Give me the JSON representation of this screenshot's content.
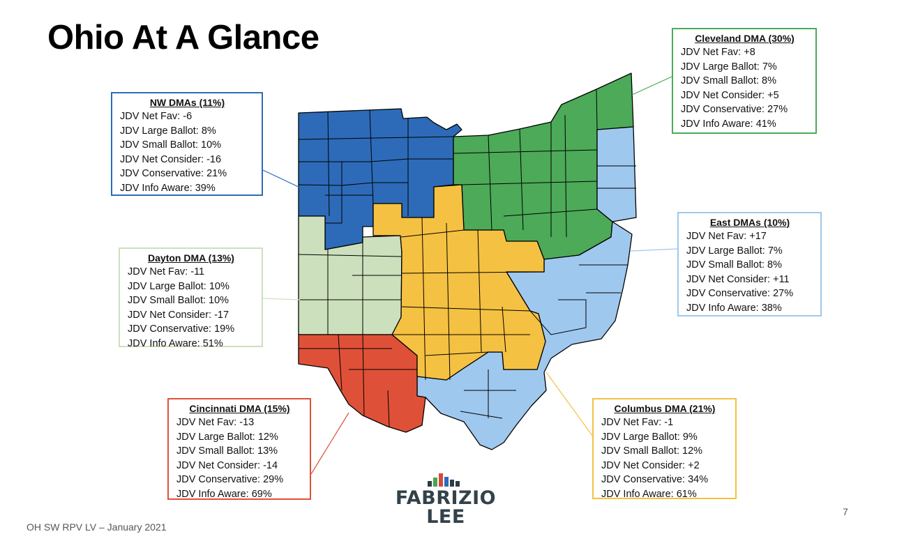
{
  "title": "Ohio At A Glance",
  "footer": "OH SW RPV LV – January 2021",
  "page_number": "7",
  "logo": {
    "line1": "FABRIZIO",
    "line2": "LEE",
    "bar_colors": [
      "#2e3d45",
      "#4aa350",
      "#d9473a",
      "#2d6bbd",
      "#2e3d45",
      "#2e3d45"
    ]
  },
  "colors": {
    "nw": "#2d6bb8",
    "cleveland": "#4caa58",
    "east": "#9fc8ef",
    "dayton": "#cde0bd",
    "cincinnati": "#de5138",
    "columbus": "#f5c142",
    "outline": "#000000"
  },
  "regions": {
    "nw": {
      "title": "NW DMAs (11%)",
      "border_color": "#2d6bb8",
      "lines": [
        "JDV Net Fav: -6",
        "JDV Large Ballot: 8%",
        "JDV Small Ballot: 10%",
        "JDV Net Consider: -16",
        "JDV Conservative: 21%",
        "JDV Info Aware: 39%"
      ]
    },
    "cleveland": {
      "title": "Cleveland DMA (30%)",
      "border_color": "#4caa58",
      "lines": [
        "JDV Net Fav: +8",
        "JDV Large Ballot: 7%",
        "JDV Small Ballot: 8%",
        "JDV Net Consider: +5",
        "JDV Conservative: 27%",
        "JDV Info Aware: 41%"
      ]
    },
    "east": {
      "title": "East DMAs (10%)",
      "border_color": "#9fc8ef",
      "lines": [
        "JDV Net Fav: +17",
        "JDV Large Ballot: 7%",
        "JDV Small Ballot: 8%",
        "JDV Net Consider: +11",
        "JDV Conservative: 27%",
        "JDV Info Aware: 38%"
      ]
    },
    "dayton": {
      "title": "Dayton DMA (13%)",
      "border_color": "#cde0bd",
      "lines": [
        "JDV Net Fav: -11",
        "JDV Large Ballot: 10%",
        "JDV Small Ballot: 10%",
        "JDV Net Consider: -17",
        "JDV Conservative: 19%",
        "JDV Info Aware: 51%"
      ]
    },
    "cincinnati": {
      "title": "Cincinnati DMA (15%)",
      "border_color": "#de5138",
      "lines": [
        "JDV Net Fav: -13",
        "JDV Large Ballot: 12%",
        "JDV Small Ballot: 13%",
        "JDV Net Consider: -14",
        "JDV Conservative: 29%",
        "JDV Info Aware: 69%"
      ]
    },
    "columbus": {
      "title": "Columbus DMA (21%)",
      "border_color": "#f5c142",
      "lines": [
        "JDV Net Fav: -1",
        "JDV Large Ballot: 9%",
        "JDV Small Ballot: 12%",
        "JDV Net Consider: +2",
        "JDV Conservative: 34%",
        "JDV Info Aware: 61%"
      ]
    }
  }
}
